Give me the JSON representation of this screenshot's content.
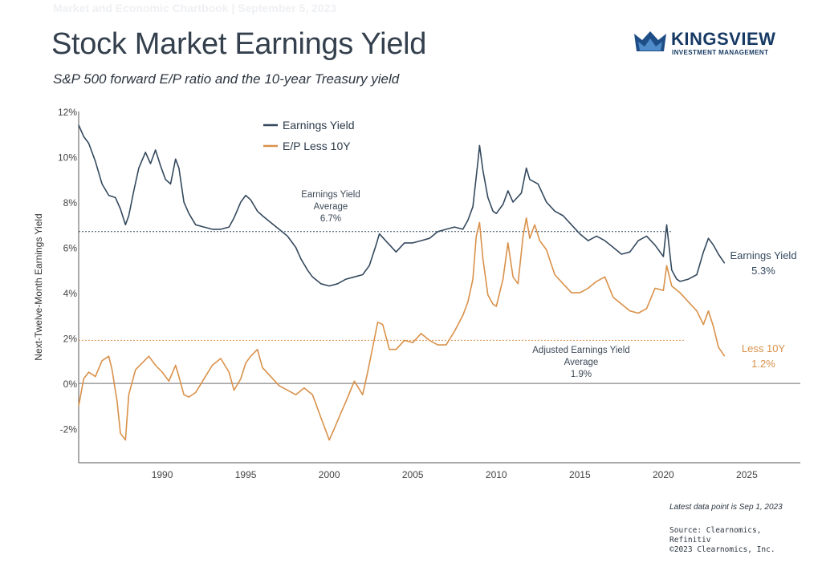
{
  "header": {
    "top_faint": "Market and Economic Chartbook | September 5, 2023",
    "title": "Stock Market Earnings Yield",
    "subtitle": "S&P 500 forward E/P ratio and the 10-year Treasury yield"
  },
  "logo": {
    "name": "KINGSVIEW",
    "tagline": "INVESTMENT MANAGEMENT",
    "mark_icon": "crown-icon"
  },
  "footer": {
    "note": "Latest data point is Sep 1, 2023",
    "source_1": "Source: Clearnomics,",
    "source_2": "Refinitiv",
    "copyright": "©2023 Clearnomics, Inc."
  },
  "colors": {
    "earnings_yield": "#34495e",
    "ep_less_10y": "#d9914a",
    "axis": "#666666",
    "zero_line": "#888888"
  },
  "chart_data": {
    "type": "line",
    "ylabel": "Next-Twelve-Month Earnings Yield",
    "xlabel": "",
    "xlim": [
      1985,
      2028.2
    ],
    "ylim": [
      -3.5,
      12
    ],
    "x_ticks": [
      1990,
      1995,
      2000,
      2005,
      2010,
      2015,
      2020,
      2025
    ],
    "y_ticks": [
      -2,
      0,
      2,
      4,
      6,
      8,
      10,
      12
    ],
    "y_tick_labels": [
      "-2%",
      "0%",
      "2%",
      "4%",
      "6%",
      "8%",
      "10%",
      "12%"
    ],
    "legend_position": "top-center",
    "series": [
      {
        "name": "Earnings Yield",
        "color": "#34495e",
        "end_label": "Earnings Yield",
        "end_value_label": "5.3%",
        "points": [
          [
            1985.0,
            11.4
          ],
          [
            1985.3,
            10.9
          ],
          [
            1985.6,
            10.6
          ],
          [
            1986.0,
            9.8
          ],
          [
            1986.4,
            8.8
          ],
          [
            1986.8,
            8.3
          ],
          [
            1987.2,
            8.2
          ],
          [
            1987.5,
            7.7
          ],
          [
            1987.8,
            7.0
          ],
          [
            1988.0,
            7.4
          ],
          [
            1988.3,
            8.5
          ],
          [
            1988.6,
            9.5
          ],
          [
            1989.0,
            10.2
          ],
          [
            1989.3,
            9.7
          ],
          [
            1989.6,
            10.3
          ],
          [
            1989.9,
            9.6
          ],
          [
            1990.2,
            9.0
          ],
          [
            1990.5,
            8.8
          ],
          [
            1990.8,
            9.9
          ],
          [
            1991.0,
            9.5
          ],
          [
            1991.3,
            8.0
          ],
          [
            1991.6,
            7.5
          ],
          [
            1992.0,
            7.0
          ],
          [
            1992.5,
            6.9
          ],
          [
            1993.0,
            6.8
          ],
          [
            1993.5,
            6.8
          ],
          [
            1994.0,
            6.9
          ],
          [
            1994.3,
            7.3
          ],
          [
            1994.7,
            8.0
          ],
          [
            1995.0,
            8.3
          ],
          [
            1995.3,
            8.1
          ],
          [
            1995.7,
            7.6
          ],
          [
            1996.0,
            7.4
          ],
          [
            1996.5,
            7.1
          ],
          [
            1997.0,
            6.8
          ],
          [
            1997.5,
            6.5
          ],
          [
            1998.0,
            6.0
          ],
          [
            1998.3,
            5.5
          ],
          [
            1998.7,
            5.0
          ],
          [
            1999.0,
            4.7
          ],
          [
            1999.5,
            4.4
          ],
          [
            2000.0,
            4.3
          ],
          [
            2000.5,
            4.4
          ],
          [
            2001.0,
            4.6
          ],
          [
            2001.5,
            4.7
          ],
          [
            2002.0,
            4.8
          ],
          [
            2002.4,
            5.2
          ],
          [
            2002.8,
            6.1
          ],
          [
            2003.0,
            6.6
          ],
          [
            2003.5,
            6.2
          ],
          [
            2004.0,
            5.8
          ],
          [
            2004.5,
            6.2
          ],
          [
            2005.0,
            6.2
          ],
          [
            2005.5,
            6.3
          ],
          [
            2006.0,
            6.4
          ],
          [
            2006.5,
            6.7
          ],
          [
            2007.0,
            6.8
          ],
          [
            2007.5,
            6.9
          ],
          [
            2008.0,
            6.8
          ],
          [
            2008.3,
            7.2
          ],
          [
            2008.6,
            7.8
          ],
          [
            2008.9,
            9.8
          ],
          [
            2009.0,
            10.5
          ],
          [
            2009.2,
            9.4
          ],
          [
            2009.5,
            8.2
          ],
          [
            2009.8,
            7.6
          ],
          [
            2010.0,
            7.5
          ],
          [
            2010.4,
            7.9
          ],
          [
            2010.7,
            8.5
          ],
          [
            2011.0,
            8.0
          ],
          [
            2011.5,
            8.4
          ],
          [
            2011.8,
            9.5
          ],
          [
            2012.0,
            9.0
          ],
          [
            2012.5,
            8.8
          ],
          [
            2013.0,
            8.0
          ],
          [
            2013.5,
            7.6
          ],
          [
            2014.0,
            7.4
          ],
          [
            2014.5,
            7.0
          ],
          [
            2015.0,
            6.6
          ],
          [
            2015.5,
            6.3
          ],
          [
            2016.0,
            6.5
          ],
          [
            2016.5,
            6.3
          ],
          [
            2017.0,
            6.0
          ],
          [
            2017.5,
            5.7
          ],
          [
            2018.0,
            5.8
          ],
          [
            2018.5,
            6.3
          ],
          [
            2019.0,
            6.5
          ],
          [
            2019.5,
            6.1
          ],
          [
            2020.0,
            5.6
          ],
          [
            2020.2,
            7.0
          ],
          [
            2020.5,
            5.0
          ],
          [
            2020.8,
            4.6
          ],
          [
            2021.0,
            4.5
          ],
          [
            2021.5,
            4.6
          ],
          [
            2022.0,
            4.8
          ],
          [
            2022.4,
            5.8
          ],
          [
            2022.7,
            6.4
          ],
          [
            2023.0,
            6.1
          ],
          [
            2023.3,
            5.7
          ],
          [
            2023.67,
            5.3
          ]
        ]
      },
      {
        "name": "E/P Less 10Y",
        "color": "#d9914a",
        "end_label": "Less 10Y",
        "end_value_label": "1.2%",
        "points": [
          [
            1985.0,
            -1.0
          ],
          [
            1985.3,
            0.2
          ],
          [
            1985.6,
            0.5
          ],
          [
            1986.0,
            0.3
          ],
          [
            1986.4,
            1.0
          ],
          [
            1986.8,
            1.2
          ],
          [
            1987.0,
            0.6
          ],
          [
            1987.3,
            -0.8
          ],
          [
            1987.5,
            -2.2
          ],
          [
            1987.8,
            -2.5
          ],
          [
            1988.0,
            -0.5
          ],
          [
            1988.4,
            0.6
          ],
          [
            1988.8,
            0.9
          ],
          [
            1989.2,
            1.2
          ],
          [
            1989.6,
            0.8
          ],
          [
            1990.0,
            0.5
          ],
          [
            1990.4,
            0.1
          ],
          [
            1990.8,
            0.8
          ],
          [
            1991.0,
            0.3
          ],
          [
            1991.3,
            -0.5
          ],
          [
            1991.6,
            -0.6
          ],
          [
            1992.0,
            -0.4
          ],
          [
            1992.5,
            0.2
          ],
          [
            1993.0,
            0.8
          ],
          [
            1993.5,
            1.1
          ],
          [
            1994.0,
            0.5
          ],
          [
            1994.3,
            -0.3
          ],
          [
            1994.7,
            0.2
          ],
          [
            1995.0,
            0.9
          ],
          [
            1995.3,
            1.2
          ],
          [
            1995.7,
            1.5
          ],
          [
            1996.0,
            0.7
          ],
          [
            1996.5,
            0.3
          ],
          [
            1997.0,
            -0.1
          ],
          [
            1997.5,
            -0.3
          ],
          [
            1998.0,
            -0.5
          ],
          [
            1998.5,
            -0.2
          ],
          [
            1999.0,
            -0.5
          ],
          [
            1999.5,
            -1.5
          ],
          [
            2000.0,
            -2.5
          ],
          [
            2000.3,
            -2.0
          ],
          [
            2000.7,
            -1.3
          ],
          [
            2001.0,
            -0.8
          ],
          [
            2001.5,
            0.1
          ],
          [
            2002.0,
            -0.5
          ],
          [
            2002.3,
            0.5
          ],
          [
            2002.6,
            1.6
          ],
          [
            2002.9,
            2.7
          ],
          [
            2003.2,
            2.6
          ],
          [
            2003.6,
            1.5
          ],
          [
            2004.0,
            1.5
          ],
          [
            2004.5,
            1.9
          ],
          [
            2005.0,
            1.8
          ],
          [
            2005.5,
            2.2
          ],
          [
            2006.0,
            1.9
          ],
          [
            2006.5,
            1.7
          ],
          [
            2007.0,
            1.7
          ],
          [
            2007.5,
            2.3
          ],
          [
            2008.0,
            3.0
          ],
          [
            2008.3,
            3.6
          ],
          [
            2008.6,
            4.6
          ],
          [
            2008.8,
            6.5
          ],
          [
            2009.0,
            7.1
          ],
          [
            2009.2,
            5.5
          ],
          [
            2009.5,
            3.9
          ],
          [
            2009.8,
            3.5
          ],
          [
            2010.0,
            3.4
          ],
          [
            2010.4,
            4.6
          ],
          [
            2010.7,
            6.2
          ],
          [
            2011.0,
            4.7
          ],
          [
            2011.3,
            4.4
          ],
          [
            2011.6,
            6.5
          ],
          [
            2011.8,
            7.3
          ],
          [
            2012.0,
            6.4
          ],
          [
            2012.3,
            7.0
          ],
          [
            2012.6,
            6.3
          ],
          [
            2013.0,
            5.9
          ],
          [
            2013.5,
            4.8
          ],
          [
            2014.0,
            4.4
          ],
          [
            2014.5,
            4.0
          ],
          [
            2015.0,
            4.0
          ],
          [
            2015.5,
            4.2
          ],
          [
            2016.0,
            4.5
          ],
          [
            2016.5,
            4.7
          ],
          [
            2017.0,
            3.8
          ],
          [
            2017.5,
            3.5
          ],
          [
            2018.0,
            3.2
          ],
          [
            2018.5,
            3.1
          ],
          [
            2019.0,
            3.3
          ],
          [
            2019.5,
            4.2
          ],
          [
            2020.0,
            4.1
          ],
          [
            2020.2,
            5.2
          ],
          [
            2020.5,
            4.3
          ],
          [
            2021.0,
            4.0
          ],
          [
            2021.5,
            3.6
          ],
          [
            2022.0,
            3.2
          ],
          [
            2022.4,
            2.6
          ],
          [
            2022.7,
            3.2
          ],
          [
            2023.0,
            2.5
          ],
          [
            2023.3,
            1.6
          ],
          [
            2023.67,
            1.2
          ]
        ]
      }
    ],
    "reference_lines": [
      {
        "y": 6.7,
        "color": "#34495e",
        "label_lines": [
          "Earnings Yield",
          "Average",
          "6.7%"
        ]
      },
      {
        "y": 1.9,
        "color": "#d9914a",
        "label_lines": [
          "Adjusted Earnings Yield",
          "Average",
          "1.9%"
        ]
      }
    ]
  }
}
